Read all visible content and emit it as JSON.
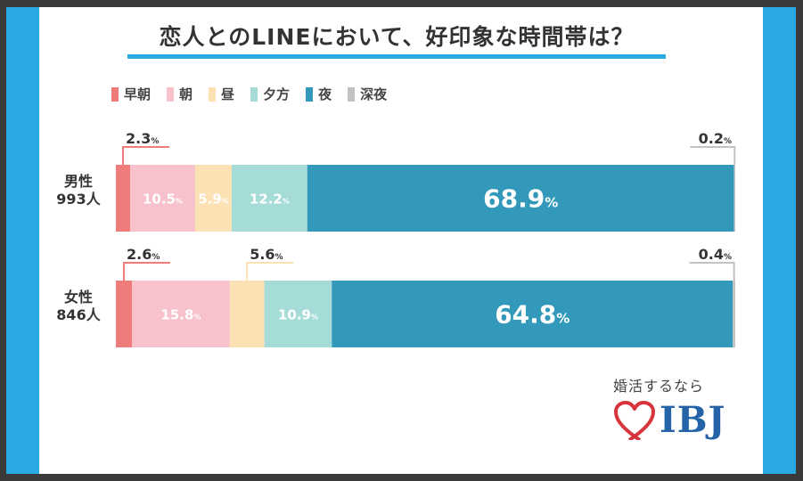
{
  "title": "恋人とのLINEにおいて、好印象な時間帯は？",
  "logo": {
    "tagline": "婚活するなら",
    "name": "IBJ",
    "heart_color": "#d8343c",
    "text_color": "#2463a8"
  },
  "colors": {
    "band": "#29aae2"
  },
  "chart_data": {
    "type": "bar",
    "orientation": "horizontal-stacked-100",
    "title": "恋人とのLINEにおいて、好印象な時間帯は？",
    "legend_placement": "top-left",
    "unit": "%",
    "series": [
      {
        "name": "早朝",
        "color": "#ef7b7b"
      },
      {
        "name": "朝",
        "color": "#f7c2cc"
      },
      {
        "name": "昼",
        "color": "#fbe1b4"
      },
      {
        "name": "夕方",
        "color": "#a6dcd8"
      },
      {
        "name": "夜",
        "color": "#3399bb"
      },
      {
        "name": "深夜",
        "color": "#c2c2c2"
      }
    ],
    "rows": [
      {
        "line1": "男性",
        "line2": "993人",
        "values": [
          2.3,
          10.5,
          5.9,
          12.2,
          68.9,
          0.2
        ]
      },
      {
        "line1": "女性",
        "line2": "846人",
        "values": [
          2.6,
          15.8,
          5.6,
          10.9,
          64.8,
          0.4
        ]
      }
    ]
  }
}
